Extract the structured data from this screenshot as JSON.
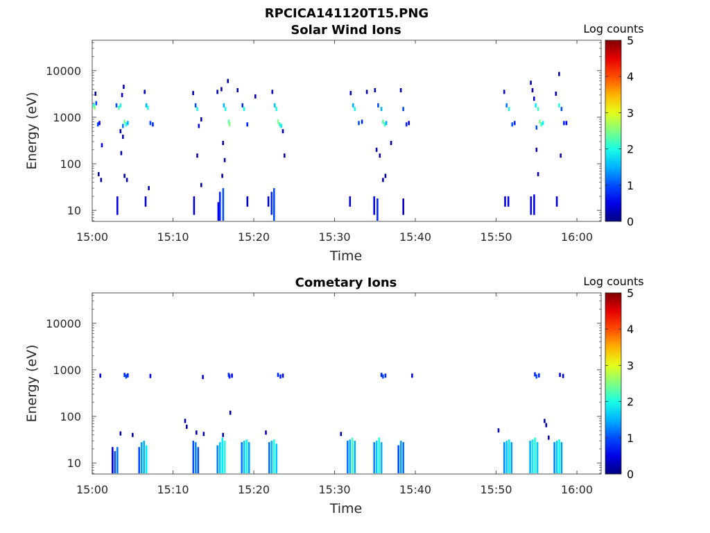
{
  "figure": {
    "title": "RPCICA141120T15.PNG"
  },
  "chart_data": [
    {
      "type": "heatmap",
      "title": "Solar Wind Ions",
      "xlabel": "Time",
      "ylabel": "Energy (eV)",
      "x_ticks": [
        "15:00",
        "15:10",
        "15:20",
        "15:30",
        "15:40",
        "15:50",
        "16:00"
      ],
      "y_ticks": [
        "10",
        "100",
        "1000",
        "10000"
      ],
      "y_scale": "log",
      "colorbar": {
        "label": "Log counts",
        "ticks": [
          "0",
          "1",
          "2",
          "3",
          "4",
          "5"
        ],
        "range": [
          0,
          5
        ],
        "colormap": "jet"
      },
      "points_units": [
        "minutes after 15:00",
        "energy eV",
        "log counts"
      ],
      "points": [
        [
          0.2,
          1800,
          2.0
        ],
        [
          0.3,
          1600,
          2.5
        ],
        [
          0.5,
          2000,
          1.0
        ],
        [
          0.7,
          700,
          1.0
        ],
        [
          0.9,
          750,
          0.5
        ],
        [
          1.2,
          250,
          0.5
        ],
        [
          0.4,
          3200,
          0.2
        ],
        [
          0.8,
          60,
          0.2
        ],
        [
          1.1,
          45,
          0.2
        ],
        [
          3.0,
          1800,
          1.0
        ],
        [
          3.3,
          1600,
          2.2
        ],
        [
          3.5,
          1800,
          2.0
        ],
        [
          3.7,
          3000,
          0.5
        ],
        [
          3.9,
          4500,
          0.3
        ],
        [
          3.8,
          650,
          1.2
        ],
        [
          4.0,
          800,
          2.5
        ],
        [
          4.2,
          700,
          2.0
        ],
        [
          4.4,
          750,
          1.5
        ],
        [
          3.5,
          500,
          0.2
        ],
        [
          3.6,
          170,
          0.2
        ],
        [
          3.8,
          380,
          0.2
        ],
        [
          4.0,
          55,
          0.2
        ],
        [
          4.3,
          45,
          0.2
        ],
        [
          6.5,
          3500,
          0.3
        ],
        [
          6.7,
          1800,
          1.5
        ],
        [
          6.9,
          1600,
          2.0
        ],
        [
          7.2,
          750,
          1.0
        ],
        [
          7.5,
          700,
          0.8
        ],
        [
          7.0,
          30,
          0.3
        ],
        [
          12.5,
          3300,
          0.3
        ],
        [
          12.8,
          1800,
          1.0
        ],
        [
          13.0,
          1500,
          2.0
        ],
        [
          13.2,
          650,
          0.5
        ],
        [
          13.5,
          900,
          0.3
        ],
        [
          13.0,
          150,
          0.2
        ],
        [
          13.5,
          35,
          0.2
        ],
        [
          15.5,
          3500,
          0.3
        ],
        [
          16.0,
          4000,
          0.2
        ],
        [
          16.3,
          1800,
          1.5
        ],
        [
          16.5,
          1500,
          2.0
        ],
        [
          16.9,
          800,
          2.3
        ],
        [
          17.0,
          700,
          2.5
        ],
        [
          16.8,
          6000,
          0.2
        ],
        [
          16.2,
          280,
          0.2
        ],
        [
          16.4,
          120,
          0.2
        ],
        [
          16.1,
          55,
          0.2
        ],
        [
          18.0,
          3800,
          0.2
        ],
        [
          18.6,
          1800,
          0.8
        ],
        [
          18.8,
          1500,
          2.0
        ],
        [
          19.2,
          700,
          0.8
        ],
        [
          20.2,
          2800,
          0.3
        ],
        [
          22.3,
          3500,
          0.3
        ],
        [
          22.6,
          1800,
          1.6
        ],
        [
          22.8,
          1500,
          2.0
        ],
        [
          23.0,
          800,
          2.5
        ],
        [
          23.2,
          700,
          2.2
        ],
        [
          23.4,
          650,
          1.8
        ],
        [
          23.6,
          500,
          0.3
        ],
        [
          23.8,
          150,
          0.2
        ],
        [
          32.0,
          3300,
          0.3
        ],
        [
          32.3,
          1800,
          1.5
        ],
        [
          32.5,
          1500,
          2.0
        ],
        [
          33.0,
          750,
          1.0
        ],
        [
          33.4,
          800,
          0.8
        ],
        [
          34.0,
          3500,
          0.2
        ],
        [
          35.0,
          3800,
          0.3
        ],
        [
          35.4,
          1800,
          1.0
        ],
        [
          35.8,
          1500,
          1.5
        ],
        [
          36.0,
          800,
          2.3
        ],
        [
          36.2,
          700,
          2.2
        ],
        [
          36.4,
          750,
          1.5
        ],
        [
          35.2,
          200,
          0.2
        ],
        [
          35.6,
          150,
          0.2
        ],
        [
          36.0,
          45,
          0.3
        ],
        [
          36.3,
          55,
          0.2
        ],
        [
          38.2,
          3800,
          0.3
        ],
        [
          38.5,
          1500,
          1.0
        ],
        [
          38.9,
          700,
          0.8
        ],
        [
          39.2,
          750,
          0.5
        ],
        [
          37.0,
          280,
          0.2
        ],
        [
          51.0,
          3500,
          0.3
        ],
        [
          51.3,
          1800,
          1.2
        ],
        [
          51.6,
          1500,
          2.0
        ],
        [
          52.0,
          700,
          1.0
        ],
        [
          52.3,
          750,
          0.8
        ],
        [
          54.5,
          3800,
          0.3
        ],
        [
          54.7,
          2500,
          0.5
        ],
        [
          54.9,
          1800,
          1.8
        ],
        [
          55.2,
          1500,
          2.2
        ],
        [
          55.4,
          800,
          2.5
        ],
        [
          55.6,
          700,
          2.2
        ],
        [
          55.8,
          750,
          1.8
        ],
        [
          55.0,
          600,
          1.0
        ],
        [
          55.0,
          200,
          0.2
        ],
        [
          55.2,
          60,
          0.3
        ],
        [
          54.3,
          5500,
          0.2
        ],
        [
          57.4,
          3200,
          0.3
        ],
        [
          57.8,
          1800,
          2.0
        ],
        [
          58.1,
          1500,
          1.0
        ],
        [
          58.4,
          750,
          0.8
        ],
        [
          58.7,
          750,
          0.5
        ],
        [
          57.8,
          8500,
          0.2
        ],
        [
          58.0,
          150,
          0.2
        ]
      ],
      "columns_units": [
        "minutes after 15:00",
        "min energy eV",
        "max energy eV",
        "log counts"
      ],
      "columns": [
        [
          3.0,
          8,
          20,
          0.5
        ],
        [
          6.5,
          12,
          20,
          0.5
        ],
        [
          12.5,
          8,
          20,
          0.4
        ],
        [
          15.5,
          6,
          15,
          0.5
        ],
        [
          15.7,
          6,
          25,
          0.8
        ],
        [
          16.1,
          6,
          30,
          1.0
        ],
        [
          19.1,
          12,
          20,
          0.4
        ],
        [
          21.7,
          12,
          20,
          0.4
        ],
        [
          22.1,
          8,
          25,
          0.8
        ],
        [
          22.4,
          6,
          30,
          1.0
        ],
        [
          31.8,
          12,
          20,
          0.4
        ],
        [
          34.8,
          8,
          20,
          0.6
        ],
        [
          35.2,
          6,
          18,
          0.8
        ],
        [
          38.4,
          8,
          18,
          0.4
        ],
        [
          51.0,
          12,
          20,
          0.5
        ],
        [
          51.4,
          12,
          20,
          0.5
        ],
        [
          54.2,
          8,
          20,
          0.6
        ],
        [
          54.6,
          8,
          22,
          0.6
        ],
        [
          57.4,
          12,
          20,
          0.4
        ]
      ]
    },
    {
      "type": "heatmap",
      "title": "Cometary Ions",
      "xlabel": "Time",
      "ylabel": "Energy (eV)",
      "x_ticks": [
        "15:00",
        "15:10",
        "15:20",
        "15:30",
        "15:40",
        "15:50",
        "16:00"
      ],
      "y_ticks": [
        "10",
        "100",
        "1000",
        "10000"
      ],
      "y_scale": "log",
      "colorbar": {
        "label": "Log counts",
        "ticks": [
          "0",
          "1",
          "2",
          "3",
          "4",
          "5"
        ],
        "range": [
          0,
          5
        ],
        "colormap": "jet"
      },
      "points_units": [
        "minutes after 15:00",
        "energy eV",
        "log counts"
      ],
      "points": [
        [
          1.0,
          750,
          0.5
        ],
        [
          4.0,
          780,
          0.8
        ],
        [
          4.2,
          720,
          1.0
        ],
        [
          4.4,
          760,
          0.8
        ],
        [
          7.2,
          740,
          0.5
        ],
        [
          13.7,
          700,
          0.4
        ],
        [
          16.9,
          780,
          0.8
        ],
        [
          17.0,
          720,
          0.8
        ],
        [
          17.3,
          750,
          0.5
        ],
        [
          17.1,
          120,
          0.2
        ],
        [
          23.0,
          780,
          0.8
        ],
        [
          23.3,
          720,
          0.8
        ],
        [
          23.6,
          750,
          0.5
        ],
        [
          35.8,
          780,
          0.8
        ],
        [
          36.0,
          720,
          1.0
        ],
        [
          36.3,
          750,
          0.8
        ],
        [
          39.6,
          750,
          0.5
        ],
        [
          54.8,
          800,
          0.8
        ],
        [
          55.0,
          720,
          1.0
        ],
        [
          55.3,
          760,
          0.8
        ],
        [
          57.9,
          780,
          0.5
        ],
        [
          58.3,
          740,
          0.5
        ],
        [
          3.5,
          43,
          0.2
        ],
        [
          5.0,
          40,
          0.2
        ],
        [
          11.5,
          80,
          0.2
        ],
        [
          11.7,
          60,
          0.2
        ],
        [
          12.9,
          45,
          0.2
        ],
        [
          13.8,
          42,
          0.3
        ],
        [
          16.2,
          40,
          0.2
        ],
        [
          21.5,
          45,
          0.3
        ],
        [
          30.8,
          42,
          0.2
        ],
        [
          50.3,
          50,
          0.3
        ],
        [
          56.0,
          80,
          0.2
        ],
        [
          56.2,
          65,
          0.2
        ],
        [
          56.5,
          35,
          0.2
        ]
      ],
      "columns_units": [
        "minutes after 15:00",
        "min energy eV",
        "max energy eV",
        "log counts"
      ],
      "columns": [
        [
          2.4,
          6,
          22,
          0.5
        ],
        [
          2.7,
          6,
          18,
          1.0
        ],
        [
          3.0,
          6,
          22,
          1.2
        ],
        [
          5.7,
          6,
          22,
          1.0
        ],
        [
          6.0,
          6,
          28,
          1.4
        ],
        [
          6.3,
          6,
          30,
          1.5
        ],
        [
          6.6,
          6,
          24,
          1.8
        ],
        [
          12.4,
          6,
          30,
          1.0
        ],
        [
          12.7,
          6,
          28,
          1.3
        ],
        [
          13.0,
          6,
          22,
          1.0
        ],
        [
          15.4,
          6,
          24,
          1.3
        ],
        [
          15.7,
          6,
          28,
          1.6
        ],
        [
          16.0,
          6,
          35,
          1.8
        ],
        [
          16.3,
          6,
          30,
          2.0
        ],
        [
          18.4,
          6,
          28,
          1.2
        ],
        [
          18.7,
          6,
          30,
          1.6
        ],
        [
          19.0,
          6,
          32,
          1.9
        ],
        [
          19.3,
          6,
          28,
          1.4
        ],
        [
          21.8,
          6,
          28,
          1.2
        ],
        [
          22.1,
          6,
          30,
          1.5
        ],
        [
          22.4,
          6,
          32,
          2.0
        ],
        [
          22.7,
          6,
          26,
          1.6
        ],
        [
          31.5,
          6,
          30,
          1.2
        ],
        [
          31.8,
          6,
          32,
          1.5
        ],
        [
          32.1,
          6,
          35,
          2.2
        ],
        [
          32.4,
          6,
          30,
          1.5
        ],
        [
          34.8,
          6,
          28,
          1.3
        ],
        [
          35.1,
          6,
          30,
          1.6
        ],
        [
          35.4,
          6,
          35,
          2.0
        ],
        [
          35.7,
          6,
          28,
          1.5
        ],
        [
          37.8,
          6,
          24,
          1.0
        ],
        [
          38.1,
          6,
          30,
          1.4
        ],
        [
          38.4,
          6,
          28,
          1.2
        ],
        [
          50.9,
          6,
          28,
          1.3
        ],
        [
          51.2,
          6,
          30,
          1.6
        ],
        [
          51.5,
          6,
          32,
          1.8
        ],
        [
          51.8,
          6,
          28,
          1.4
        ],
        [
          54.1,
          6,
          30,
          1.5
        ],
        [
          54.4,
          6,
          32,
          1.8
        ],
        [
          54.7,
          6,
          35,
          2.0
        ],
        [
          55.0,
          6,
          28,
          1.6
        ],
        [
          57.1,
          6,
          28,
          1.3
        ],
        [
          57.4,
          6,
          30,
          1.6
        ],
        [
          57.7,
          6,
          32,
          1.9
        ],
        [
          58.0,
          6,
          28,
          1.4
        ]
      ]
    }
  ]
}
